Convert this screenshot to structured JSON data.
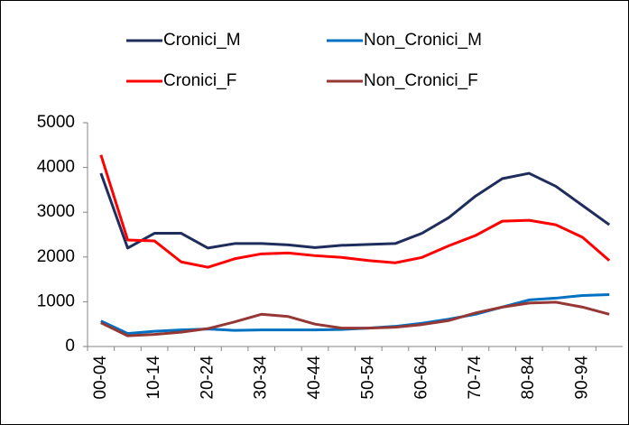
{
  "chart_data": {
    "type": "line",
    "categories": [
      "00-04",
      null,
      "10-14",
      null,
      "20-24",
      null,
      "30-34",
      null,
      "40-44",
      null,
      "50-54",
      null,
      "60-64",
      null,
      "70-74",
      null,
      "80-84",
      null,
      "90-94",
      null
    ],
    "series": [
      {
        "name": "Cronici_M",
        "color": "#1f2d5c",
        "values": [
          3870,
          2200,
          2530,
          2530,
          2200,
          2300,
          2300,
          2270,
          2210,
          2260,
          2280,
          2300,
          2530,
          2880,
          3360,
          3750,
          3870,
          3580,
          3150,
          2720
        ]
      },
      {
        "name": "Non_Cronici_M",
        "color": "#0070c0",
        "values": [
          570,
          290,
          340,
          370,
          390,
          360,
          370,
          370,
          370,
          380,
          410,
          450,
          520,
          610,
          720,
          880,
          1040,
          1080,
          1140,
          1160
        ]
      },
      {
        "name": "Cronici_F",
        "color": "#ff0000",
        "values": [
          4280,
          2380,
          2360,
          1890,
          1770,
          1960,
          2070,
          2090,
          2030,
          1990,
          1920,
          1870,
          1990,
          2250,
          2480,
          2800,
          2820,
          2720,
          2440,
          1920
        ]
      },
      {
        "name": "Non_Cronici_F",
        "color": "#953735",
        "values": [
          530,
          240,
          270,
          320,
          400,
          550,
          720,
          670,
          500,
          410,
          410,
          430,
          490,
          580,
          750,
          880,
          970,
          990,
          880,
          720
        ]
      }
    ],
    "ylim": [
      0,
      5000
    ],
    "yticks": [
      0,
      1000,
      2000,
      3000,
      4000,
      5000
    ],
    "grid": false,
    "legend": "top"
  }
}
